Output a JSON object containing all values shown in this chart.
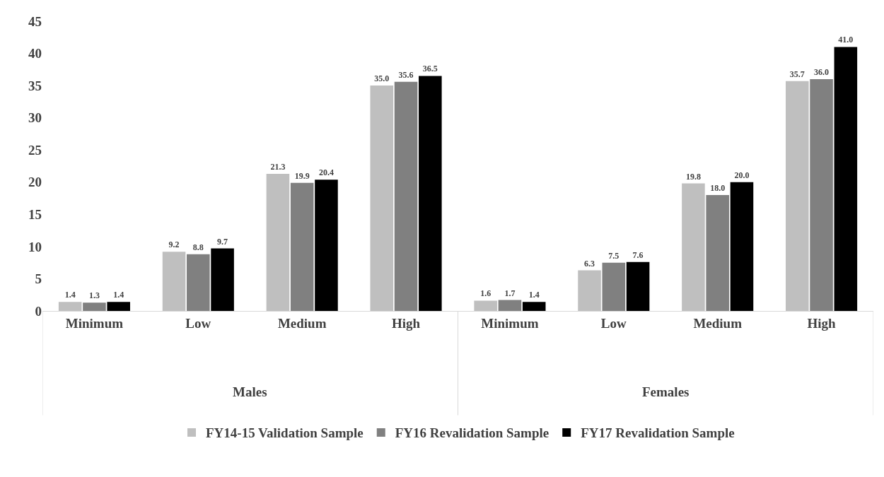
{
  "chart_data": {
    "type": "bar",
    "categories": [
      "Minimum",
      "Low",
      "Medium",
      "High",
      "Minimum",
      "Low",
      "Medium",
      "High"
    ],
    "series": [
      {
        "name": "FY14-15 Validation Sample",
        "color": "#bfbfbf",
        "values": [
          1.4,
          9.2,
          21.3,
          35.0,
          1.6,
          6.3,
          19.8,
          35.7
        ],
        "value_labels": [
          "1.4",
          "9.2",
          "21.3",
          "35.0",
          "1.6",
          "6.3",
          "19.8",
          "35.7"
        ]
      },
      {
        "name": "FY16 Revalidation Sample",
        "color": "#808080",
        "values": [
          1.3,
          8.8,
          19.9,
          35.6,
          1.7,
          7.5,
          18.0,
          36.0
        ],
        "value_labels": [
          "1.3",
          "8.8",
          "19.9",
          "35.6",
          "1.7",
          "7.5",
          "18.0",
          "36.0"
        ]
      },
      {
        "name": "FY17 Revalidation Sample",
        "color": "#000000",
        "values": [
          1.4,
          9.7,
          20.4,
          36.5,
          1.4,
          7.6,
          20.0,
          41.0
        ],
        "value_labels": [
          "1.4",
          "9.7",
          "20.4",
          "36.5",
          "1.4",
          "7.6",
          "20.0",
          "41.0"
        ]
      }
    ],
    "annotations": [
      "Males",
      "Females"
    ],
    "ylim": [
      0,
      45
    ],
    "yticks": [
      0,
      5,
      10,
      15,
      20,
      25,
      30,
      35,
      40,
      45
    ],
    "legend": "bottom"
  }
}
